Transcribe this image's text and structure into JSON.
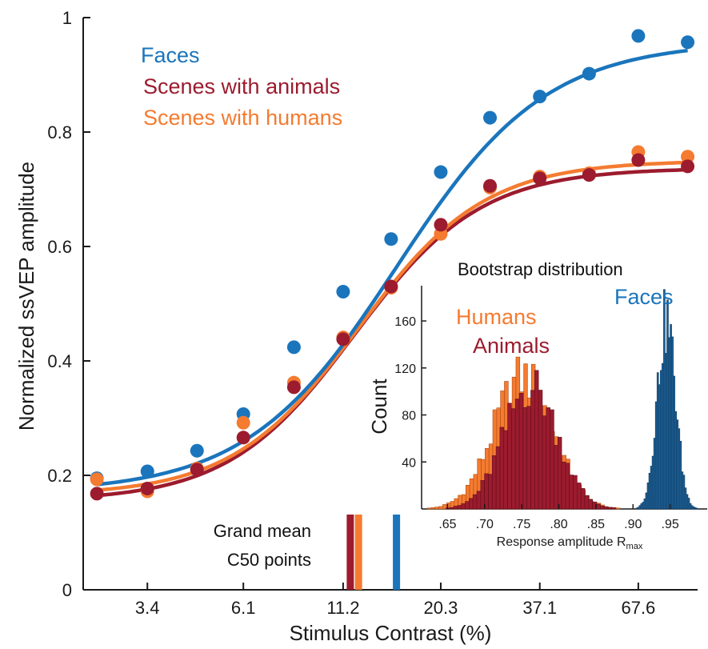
{
  "chart_data": [
    {
      "type": "scatter",
      "xlabel": "Stimulus Contrast (%)",
      "ylabel": "Normalized ssVEP amplitude",
      "x_scale": "log",
      "x_ticks": [
        3.4,
        6.1,
        11.2,
        20.3,
        37.1,
        67.6
      ],
      "x_tick_labels": [
        "3.4",
        "6.1",
        "11.2",
        "20.3",
        "37.1",
        "67.6"
      ],
      "y_ticks": [
        0,
        0.2,
        0.4,
        0.6,
        0.8,
        1
      ],
      "y_tick_labels": [
        "0",
        "0.2",
        "0.4",
        "0.6",
        "0.8",
        "1"
      ],
      "xlim": [
        2.3,
        97
      ],
      "ylim": [
        0,
        1
      ],
      "x": [
        2.5,
        3.4,
        4.6,
        6.1,
        8.3,
        11.2,
        15.0,
        20.3,
        27.4,
        37.1,
        50.1,
        67.6,
        91.3
      ],
      "series": [
        {
          "name": "Faces",
          "color": "#1a75bc",
          "values": [
            0.195,
            0.207,
            0.243,
            0.307,
            0.424,
            0.521,
            0.613,
            0.73,
            0.825,
            0.862,
            0.902,
            0.968,
            0.957
          ],
          "fit": {
            "base": 0.17,
            "rmax": 0.958,
            "c50": 15.5,
            "n": 2.2
          }
        },
        {
          "name": "Scenes with animals",
          "color": "#9c1b2e",
          "values": [
            0.168,
            0.177,
            0.21,
            0.266,
            0.354,
            0.438,
            0.53,
            0.638,
            0.706,
            0.719,
            0.725,
            0.751,
            0.74
          ],
          "fit": {
            "base": 0.155,
            "rmax": 0.737,
            "c50": 12.0,
            "n": 2.6
          }
        },
        {
          "name": "Scenes with humans",
          "color": "#f47b30",
          "values": [
            0.193,
            0.172,
            0.212,
            0.292,
            0.362,
            0.441,
            0.528,
            0.622,
            0.703,
            0.722,
            0.728,
            0.765,
            0.757
          ],
          "fit": {
            "base": 0.165,
            "rmax": 0.75,
            "c50": 12.3,
            "n": 2.6
          }
        }
      ],
      "c50_markers": {
        "label_line1": "Grand mean",
        "label_line2": "C50 points",
        "items": [
          {
            "series": "Scenes with animals",
            "x": 11.7,
            "color": "#9c1b2e"
          },
          {
            "series": "Scenes with humans",
            "x": 12.3,
            "color": "#f47b30"
          },
          {
            "series": "Faces",
            "x": 15.5,
            "color": "#1a75bc"
          }
        ]
      }
    },
    {
      "type": "bar",
      "subtype": "histogram",
      "title": "Bootstrap distribution",
      "xlabel_main": "Response amplitude R",
      "xlabel_sub": "max",
      "ylabel": "Count",
      "xlim": [
        0.615,
        1.0
      ],
      "ylim": [
        0,
        190
      ],
      "x_ticks": [
        0.65,
        0.7,
        0.75,
        0.8,
        0.85,
        0.9,
        0.95
      ],
      "x_tick_labels": [
        ".65",
        ".70",
        ".75",
        ".80",
        ".85",
        ".90",
        ".95"
      ],
      "y_ticks": [
        40,
        80,
        120,
        160
      ],
      "y_tick_labels": [
        "40",
        "80",
        "120",
        "160"
      ],
      "series": [
        {
          "name": "Humans",
          "color": "#f47b30",
          "mean": 0.752,
          "sd": 0.04,
          "peak": 112
        },
        {
          "name": "Animals",
          "color": "#9c1b2e",
          "mean": 0.762,
          "sd": 0.036,
          "peak": 105
        },
        {
          "name": "Faces",
          "color": "#1d5f95",
          "mean": 0.945,
          "sd": 0.0125,
          "peak": 160
        }
      ]
    }
  ]
}
